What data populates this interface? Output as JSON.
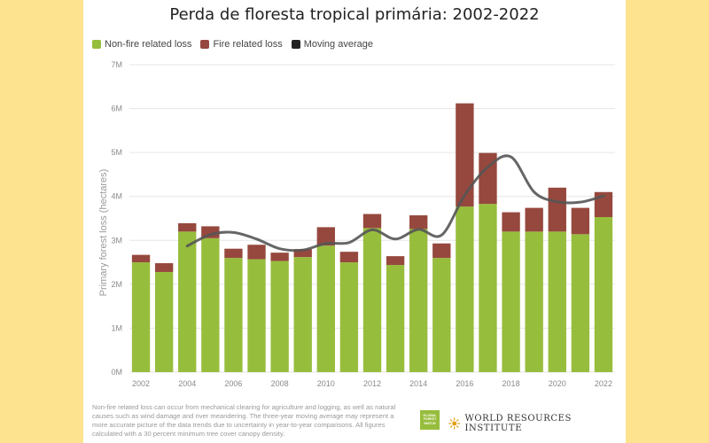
{
  "colors": {
    "page_background": "#fde38f",
    "card_background": "#ffffff",
    "non_fire": "#97bd3d",
    "fire": "#96483e",
    "moving_average": "#555555"
  },
  "footnote": "Non-fire related loss can occur from mechanical clearing for agriculture and logging, as well as natural causes such as wind damage and river meandering. The three-year moving average may represent a more accurate picture of the data trends due to uncertainty in year-to-year comparisons. All figures calculated with a 30 percent minimum tree cover canopy density.",
  "logos": {
    "gfw": {
      "line1": "GLOBAL",
      "line2": "FOREST",
      "line3": "WATCH",
      "icon": "gfw-logo"
    },
    "wri": {
      "text": "WORLD RESOURCES INSTITUTE",
      "icon": "wri-sun-icon"
    }
  },
  "chart_data": {
    "type": "bar",
    "stacked": true,
    "title": "Perda de floresta tropical primária: 2002-2022",
    "ylabel": "Primary forest loss (hectares)",
    "xlabel": "",
    "ylim": [
      0,
      7000000
    ],
    "yticks": [
      0,
      1000000,
      2000000,
      3000000,
      4000000,
      5000000,
      6000000,
      7000000
    ],
    "ytick_labels": [
      "0M",
      "1M",
      "2M",
      "3M",
      "4M",
      "5M",
      "6M",
      "7M"
    ],
    "categories": [
      2002,
      2003,
      2004,
      2005,
      2006,
      2007,
      2008,
      2009,
      2010,
      2011,
      2012,
      2013,
      2014,
      2015,
      2016,
      2017,
      2018,
      2019,
      2020,
      2021,
      2022
    ],
    "xtick_labels": [
      "2002",
      "2004",
      "2006",
      "2008",
      "2010",
      "2012",
      "2014",
      "2016",
      "2018",
      "2020",
      "2022"
    ],
    "grid": true,
    "legend_position": "top-left",
    "legend": [
      "Non-fire related loss",
      "Fire related loss",
      "Moving average"
    ],
    "series": [
      {
        "name": "Non-fire related loss",
        "color": "#97bd3d",
        "values": [
          2500000,
          2280000,
          3200000,
          3050000,
          2600000,
          2570000,
          2530000,
          2620000,
          2880000,
          2500000,
          3280000,
          2440000,
          3260000,
          2600000,
          3770000,
          3830000,
          3200000,
          3200000,
          3200000,
          3140000,
          3530000
        ]
      },
      {
        "name": "Fire related loss",
        "color": "#96483e",
        "values": [
          170000,
          200000,
          190000,
          270000,
          210000,
          330000,
          190000,
          180000,
          420000,
          240000,
          320000,
          200000,
          310000,
          330000,
          2350000,
          1160000,
          440000,
          540000,
          1000000,
          600000,
          570000
        ]
      }
    ],
    "moving_average": {
      "name": "Moving average",
      "color": "#555555",
      "x": [
        2004,
        2005,
        2006,
        2007,
        2008,
        2009,
        2010,
        2011,
        2012,
        2013,
        2014,
        2015,
        2016,
        2017,
        2018,
        2019,
        2020,
        2021,
        2022
      ],
      "values": [
        2870000,
        3130000,
        3180000,
        3030000,
        2810000,
        2780000,
        2930000,
        2950000,
        3240000,
        3030000,
        3250000,
        3120000,
        4030000,
        4670000,
        4900000,
        4100000,
        3880000,
        3870000,
        4010000
      ]
    }
  }
}
